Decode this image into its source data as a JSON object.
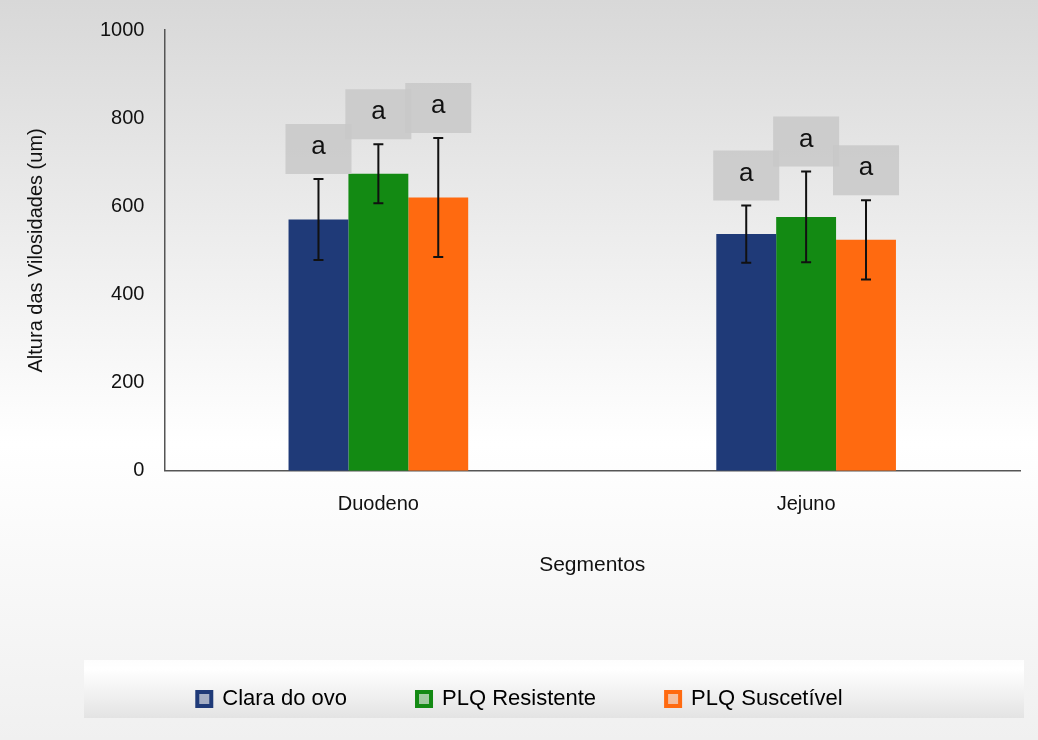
{
  "chart_data": {
    "type": "bar",
    "xlabel": "Segmentos",
    "ylabel": "Altura das Vilosidades (um)",
    "categories": [
      "Duodeno",
      "Jejuno"
    ],
    "series": [
      {
        "name": "Clara do ovo",
        "color": "#1f3a78",
        "values": [
          570,
          537
        ],
        "errors": [
          92,
          65
        ]
      },
      {
        "name": "PLQ Resistente",
        "color": "#138a13",
        "values": [
          674,
          576
        ],
        "errors": [
          67,
          103
        ]
      },
      {
        "name": "PLQ Suscetível",
        "color": "#ff6a10",
        "values": [
          620,
          524
        ],
        "errors": [
          135,
          90
        ]
      }
    ],
    "ylim": [
      0,
      1000
    ],
    "yticks": [
      0,
      200,
      400,
      600,
      800,
      1000
    ],
    "grid": false,
    "legend": "bottom",
    "annotations": [
      "a",
      "a",
      "a",
      "a",
      "a",
      "a"
    ]
  }
}
